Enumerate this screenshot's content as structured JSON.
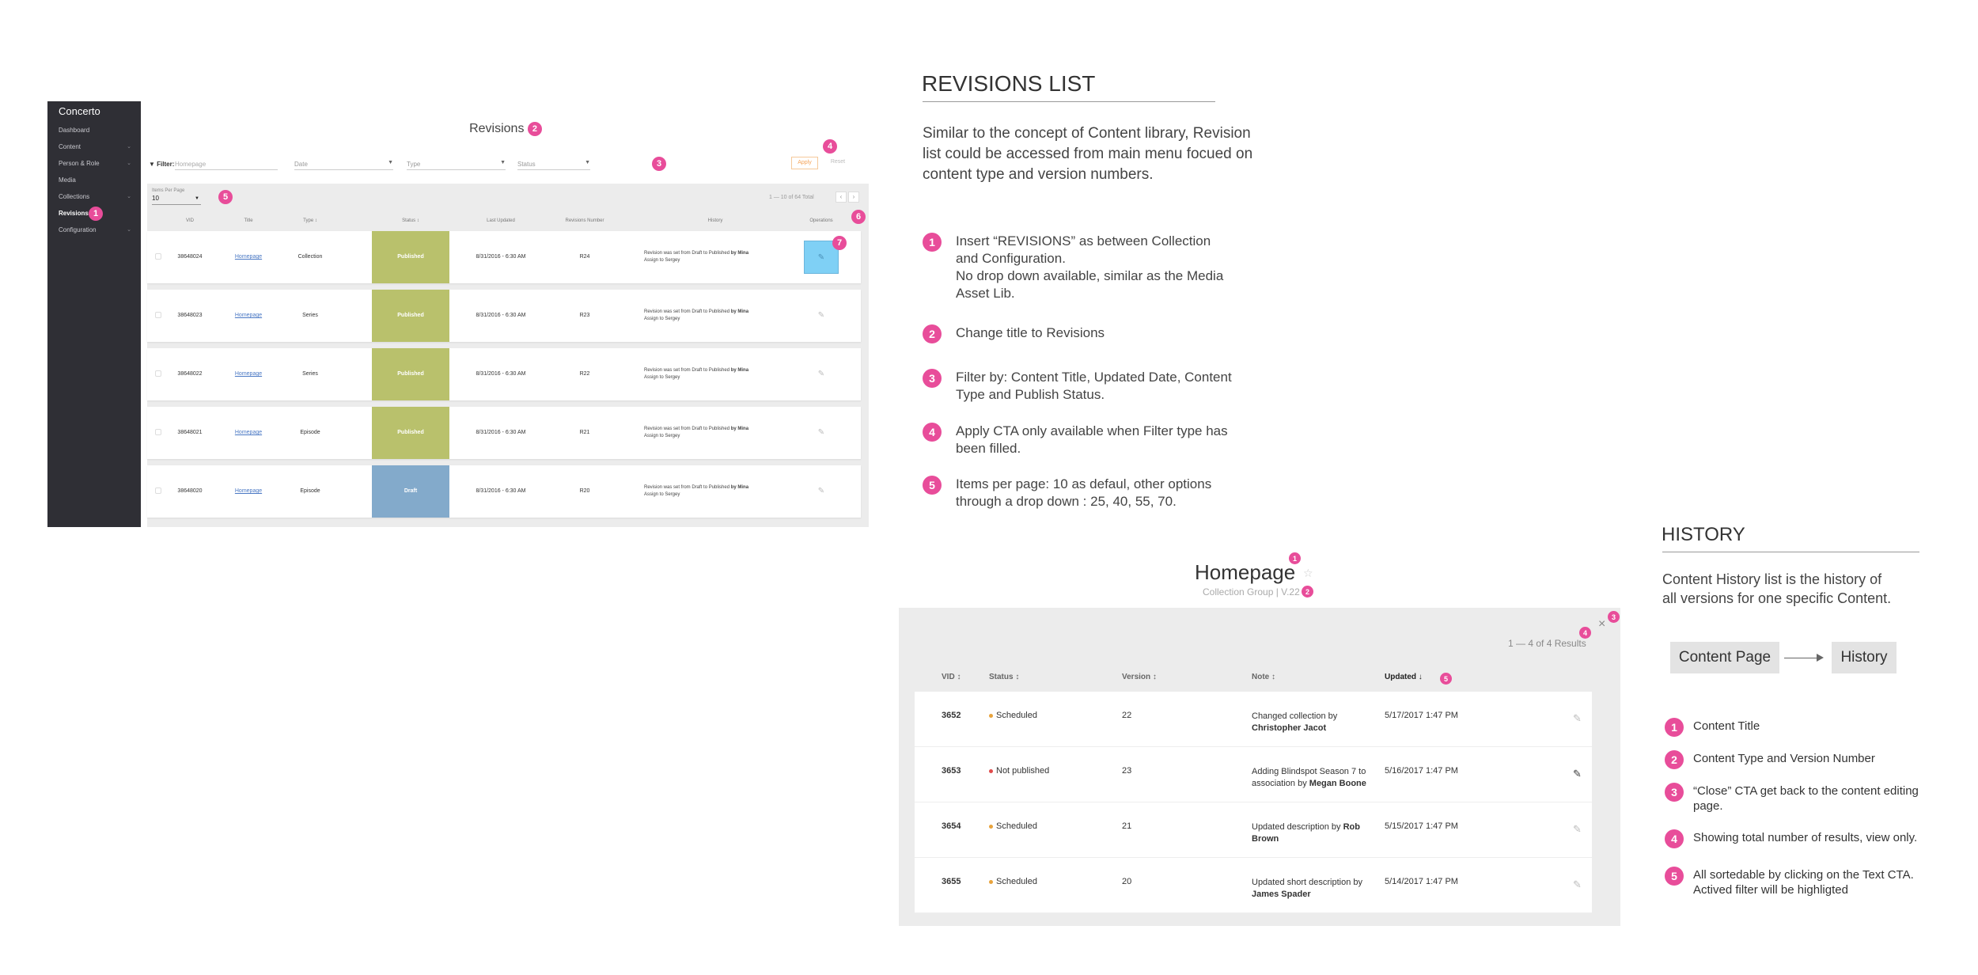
{
  "app": {
    "brand": "Concerto",
    "sidebar": [
      {
        "label": "Dashboard",
        "chevron": false
      },
      {
        "label": "Content",
        "chevron": true
      },
      {
        "label": "Person & Role",
        "chevron": true
      },
      {
        "label": "Media",
        "chevron": false
      },
      {
        "label": "Collections",
        "chevron": true
      },
      {
        "label": "Revisions",
        "chevron": false,
        "active": true,
        "badge": "1"
      },
      {
        "label": "Configuration",
        "chevron": true
      }
    ],
    "page_title": "Revisions",
    "page_title_badge": "2",
    "filter": {
      "label": "Filter:",
      "placeholder": "Homepage",
      "date": "Date",
      "type": "Type",
      "status": "Status",
      "badge": "3"
    },
    "apply_label": "Apply",
    "reset_label": "Reset",
    "apply_badge": "4",
    "items_per_page_label": "Items Per Page",
    "items_per_page_value": "10",
    "ipp_badge": "5",
    "paging_text": "1 — 10 of 64 Total",
    "paging_prev": "‹",
    "paging_next": "›",
    "columns": [
      "VID",
      "Title",
      "Type ↕",
      "Status ↕",
      "Last Updated",
      "Revisions Number",
      "History",
      "Operations"
    ],
    "operations_badge": "6",
    "edit_badge": "7",
    "rows": [
      {
        "vid": "38648024",
        "title": "Homepage",
        "type": "Collection",
        "status": "Published",
        "updated": "8/31/2016 - 6:30 AM",
        "revision": "R24",
        "history": "Revision was set from Draft to Published",
        "by": "by Mina",
        "assign": "Assign to Sergey"
      },
      {
        "vid": "38648023",
        "title": "Homepage",
        "type": "Series",
        "status": "Published",
        "updated": "8/31/2016 - 6:30 AM",
        "revision": "R23",
        "history": "Revision was set from Draft to Published",
        "by": "by Mina",
        "assign": "Assign to Sergey"
      },
      {
        "vid": "38648022",
        "title": "Homepage",
        "type": "Series",
        "status": "Published",
        "updated": "8/31/2016 - 6:30 AM",
        "revision": "R22",
        "history": "Revision was set from Draft to Published",
        "by": "by Mina",
        "assign": "Assign to Sergey"
      },
      {
        "vid": "38648021",
        "title": "Homepage",
        "type": "Episode",
        "status": "Published",
        "updated": "8/31/2016 - 6:30 AM",
        "revision": "R21",
        "history": "Revision was set from Draft to Published",
        "by": "by Mina",
        "assign": "Assign to Sergey"
      },
      {
        "vid": "38648020",
        "title": "Homepage",
        "type": "Episode",
        "status": "Draft",
        "updated": "8/31/2016 - 6:30 AM",
        "revision": "R20",
        "history": "Revision was set from Draft to Published",
        "by": "by Mina",
        "assign": "Assign to Sergey"
      }
    ],
    "status_colors": {
      "Published": "#b9c16c",
      "Draft": "#83aacb"
    }
  },
  "revisions_notes": {
    "heading": "REVISIONS LIST",
    "intro": "Similar to the concept of Content library, Revision list could be accessed from main menu focued on content type and version numbers.",
    "items": [
      {
        "badge": "1",
        "lines": [
          "Insert “REVISIONS” as between Collection",
          "and Configuration.",
          "No drop down available, similar as the Media",
          "Asset Lib."
        ]
      },
      {
        "badge": "2",
        "lines": [
          "Change title to Revisions"
        ]
      },
      {
        "badge": "3",
        "lines": [
          "Filter by: Content Title, Updated Date, Content",
          "Type and Publish Status."
        ]
      },
      {
        "badge": "4",
        "lines": [
          "Apply CTA only available when Filter type has",
          "been filled."
        ]
      },
      {
        "badge": "5",
        "lines": [
          "Items per page: 10 as defaul, other options",
          "through a drop down : 25, 40, 55, 70."
        ]
      }
    ]
  },
  "history_panel": {
    "title": "Homepage",
    "title_badge": "1",
    "subtitle": "Collection Group | V.22",
    "subtitle_badge": "2",
    "close_label": "×",
    "close_badge": "3",
    "results": "1 — 4 of 4 Results",
    "results_badge": "4",
    "columns": [
      "VID ↕",
      "Status ↕",
      "Version ↕",
      "Note ↕",
      "Updated ↓"
    ],
    "sort_badge": "5",
    "rows": [
      {
        "vid": "3652",
        "status": "Scheduled",
        "dot": "#e8a33c",
        "version": "22",
        "note": "Changed collection by",
        "note_by": "Christopher Jacot",
        "updated": "5/17/2017 1:47 PM",
        "edit_active": false
      },
      {
        "vid": "3653",
        "status": "Not published",
        "dot": "#e04b4b",
        "version": "23",
        "note": "Adding Blindspot Season 7 to association by",
        "note_by": "Megan Boone",
        "updated": "5/16/2017 1:47 PM",
        "edit_active": true
      },
      {
        "vid": "3654",
        "status": "Scheduled",
        "dot": "#e8a33c",
        "version": "21",
        "note": "Updated description by",
        "note_by": "Rob Brown",
        "updated": "5/15/2017 1:47 PM",
        "edit_active": false
      },
      {
        "vid": "3655",
        "status": "Scheduled",
        "dot": "#e8a33c",
        "version": "20",
        "note": "Updated short description by",
        "note_by": "James Spader",
        "updated": "5/14/2017 1:47 PM",
        "edit_active": false
      }
    ]
  },
  "history_notes": {
    "heading": "HISTORY",
    "intro_lines": [
      "Content History list is the history of",
      "all versions for one specific Content."
    ],
    "flow_from": "Content Page",
    "flow_to": "History",
    "items": [
      {
        "badge": "1",
        "lines": [
          "Content Title"
        ]
      },
      {
        "badge": "2",
        "lines": [
          "Content Type and Version Number"
        ]
      },
      {
        "badge": "3",
        "lines": [
          "“Close” CTA get back to the content editing",
          "page."
        ]
      },
      {
        "badge": "4",
        "lines": [
          "Showing total number of results, view only."
        ]
      },
      {
        "badge": "5",
        "lines": [
          "All sortedable by clicking on the Text CTA.",
          "Actived filter will be highligted"
        ]
      }
    ]
  }
}
